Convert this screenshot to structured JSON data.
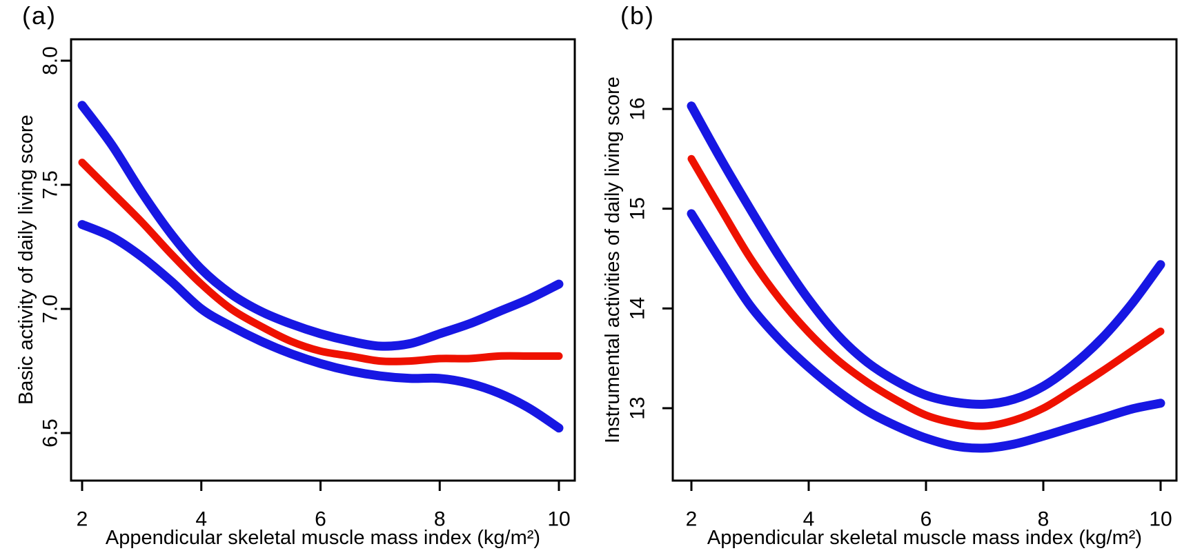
{
  "figure": {
    "background": "#ffffff",
    "axis_color": "#000000"
  },
  "chart_data": [
    {
      "type": "line",
      "panel_label": "(a)",
      "xlabel": "Appendicular skeletal muscle mass index (kg/m²)",
      "ylabel": "Basic activity of daily living score",
      "x_tick_labels": [
        "2",
        "4",
        "6",
        "8",
        "10"
      ],
      "x_tick_values": [
        2,
        4,
        6,
        8,
        10
      ],
      "y_tick_labels": [
        "8.0",
        "7.5",
        "7.0",
        "6.5"
      ],
      "y_tick_values": [
        8.0,
        7.5,
        7.0,
        6.5
      ],
      "xlim": [
        1.82,
        10.27
      ],
      "ylim": [
        6.31,
        8.09
      ],
      "grid": false,
      "legend": null,
      "x": [
        2,
        2.5,
        3,
        3.5,
        4,
        4.5,
        5,
        5.5,
        6,
        6.5,
        7,
        7.5,
        8,
        8.5,
        9,
        9.5,
        10
      ],
      "series": [
        {
          "name": "upper-95ci",
          "role": "confidence-upper",
          "color": "#1717e3",
          "stroke_width": 13,
          "values": [
            7.82,
            7.66,
            7.47,
            7.3,
            7.16,
            7.06,
            6.99,
            6.94,
            6.9,
            6.87,
            6.85,
            6.86,
            6.9,
            6.94,
            6.99,
            7.04,
            7.1
          ]
        },
        {
          "name": "estimate",
          "role": "fitted-spline",
          "color": "#ee1100",
          "stroke_width": 11,
          "values": [
            7.59,
            7.47,
            7.35,
            7.22,
            7.1,
            7.0,
            6.93,
            6.87,
            6.83,
            6.81,
            6.79,
            6.79,
            6.8,
            6.8,
            6.81,
            6.81,
            6.81
          ]
        },
        {
          "name": "lower-95ci",
          "role": "confidence-lower",
          "color": "#1717e3",
          "stroke_width": 13,
          "values": [
            7.34,
            7.29,
            7.21,
            7.11,
            7.0,
            6.93,
            6.87,
            6.82,
            6.78,
            6.75,
            6.73,
            6.72,
            6.72,
            6.7,
            6.66,
            6.6,
            6.52
          ]
        }
      ]
    },
    {
      "type": "line",
      "panel_label": "(b)",
      "xlabel": "Appendicular skeletal muscle mass index (kg/m²)",
      "ylabel": "Instrumental activities of daily living score",
      "x_tick_labels": [
        "2",
        "4",
        "6",
        "8",
        "10"
      ],
      "x_tick_values": [
        2,
        4,
        6,
        8,
        10
      ],
      "y_tick_labels": [
        "16",
        "15",
        "14",
        "13"
      ],
      "y_tick_values": [
        16,
        15,
        14,
        13
      ],
      "xlim": [
        1.68,
        10.27
      ],
      "ylim": [
        12.27,
        16.7
      ],
      "grid": false,
      "legend": null,
      "x": [
        2,
        2.5,
        3,
        3.5,
        4,
        4.5,
        5,
        5.5,
        6,
        6.5,
        7,
        7.5,
        8,
        8.5,
        9,
        9.5,
        10
      ],
      "series": [
        {
          "name": "upper-95ci",
          "role": "confidence-upper",
          "color": "#1717e3",
          "stroke_width": 13,
          "values": [
            16.03,
            15.5,
            15.0,
            14.52,
            14.09,
            13.73,
            13.46,
            13.27,
            13.13,
            13.06,
            13.04,
            13.09,
            13.22,
            13.43,
            13.7,
            14.04,
            14.44
          ]
        },
        {
          "name": "estimate",
          "role": "fitted-spline",
          "color": "#ee1100",
          "stroke_width": 11,
          "values": [
            15.5,
            15.0,
            14.51,
            14.1,
            13.76,
            13.48,
            13.26,
            13.08,
            12.93,
            12.85,
            12.82,
            12.88,
            13.0,
            13.18,
            13.37,
            13.57,
            13.77
          ]
        },
        {
          "name": "lower-95ci",
          "role": "confidence-lower",
          "color": "#1717e3",
          "stroke_width": 13,
          "values": [
            14.95,
            14.48,
            14.03,
            13.69,
            13.41,
            13.17,
            12.97,
            12.82,
            12.7,
            12.62,
            12.6,
            12.64,
            12.72,
            12.81,
            12.9,
            12.99,
            13.05
          ]
        }
      ]
    }
  ]
}
